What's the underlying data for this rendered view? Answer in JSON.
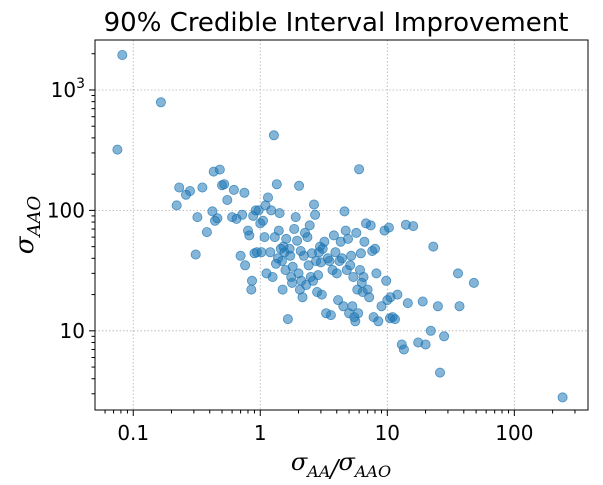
{
  "chart_data": {
    "type": "scatter",
    "title": "90% Credible Interval Improvement",
    "xlabel": "σ_AA/σ_AAO",
    "ylabel": "σ_AAO",
    "xscale": "log",
    "yscale": "log",
    "xlim": [
      0.05,
      380
    ],
    "ylim": [
      2.2,
      2600
    ],
    "grid": true,
    "x_ticks": [
      {
        "value": 0.1,
        "label": "0.1"
      },
      {
        "value": 1,
        "label": "1"
      },
      {
        "value": 10,
        "label": "10"
      },
      {
        "value": 100,
        "label": "100"
      }
    ],
    "y_ticks": [
      {
        "value": 10,
        "label": "10"
      },
      {
        "value": 100,
        "label": "100"
      },
      {
        "value": 1000,
        "label": "10^3"
      }
    ],
    "color": "#1f77b4",
    "points": [
      [
        0.075,
        320
      ],
      [
        0.082,
        1950
      ],
      [
        0.165,
        790
      ],
      [
        0.22,
        110
      ],
      [
        0.23,
        155
      ],
      [
        0.26,
        135
      ],
      [
        0.28,
        145
      ],
      [
        0.31,
        43
      ],
      [
        0.32,
        88
      ],
      [
        0.35,
        155
      ],
      [
        0.38,
        66
      ],
      [
        0.42,
        98
      ],
      [
        0.43,
        210
      ],
      [
        0.44,
        82
      ],
      [
        0.46,
        86
      ],
      [
        0.48,
        218
      ],
      [
        0.5,
        162
      ],
      [
        0.52,
        165
      ],
      [
        0.55,
        122
      ],
      [
        0.6,
        88
      ],
      [
        0.62,
        148
      ],
      [
        0.65,
        85
      ],
      [
        0.7,
        42
      ],
      [
        0.72,
        92
      ],
      [
        0.75,
        140
      ],
      [
        0.76,
        35
      ],
      [
        0.8,
        68
      ],
      [
        0.82,
        62
      ],
      [
        0.85,
        22
      ],
      [
        0.86,
        26
      ],
      [
        0.88,
        90
      ],
      [
        0.9,
        44
      ],
      [
        0.92,
        100
      ],
      [
        0.94,
        45
      ],
      [
        0.97,
        100
      ],
      [
        1.0,
        78
      ],
      [
        1.02,
        45
      ],
      [
        1.05,
        82
      ],
      [
        1.08,
        60
      ],
      [
        1.1,
        110
      ],
      [
        1.12,
        30
      ],
      [
        1.15,
        128
      ],
      [
        1.2,
        45
      ],
      [
        1.22,
        100
      ],
      [
        1.25,
        28
      ],
      [
        1.28,
        420
      ],
      [
        1.3,
        60
      ],
      [
        1.33,
        36
      ],
      [
        1.35,
        165
      ],
      [
        1.38,
        40
      ],
      [
        1.4,
        68
      ],
      [
        1.42,
        95
      ],
      [
        1.45,
        48
      ],
      [
        1.48,
        38
      ],
      [
        1.5,
        22
      ],
      [
        1.52,
        50
      ],
      [
        1.55,
        45
      ],
      [
        1.58,
        32
      ],
      [
        1.6,
        58
      ],
      [
        1.65,
        12.5
      ],
      [
        1.7,
        48
      ],
      [
        1.72,
        42
      ],
      [
        1.75,
        28
      ],
      [
        1.78,
        25
      ],
      [
        1.8,
        34
      ],
      [
        1.85,
        70
      ],
      [
        1.9,
        88
      ],
      [
        1.95,
        56
      ],
      [
        2.0,
        30
      ],
      [
        2.02,
        160
      ],
      [
        2.05,
        22
      ],
      [
        2.08,
        46
      ],
      [
        2.1,
        26
      ],
      [
        2.15,
        19
      ],
      [
        2.2,
        42
      ],
      [
        2.25,
        65
      ],
      [
        2.3,
        24
      ],
      [
        2.35,
        60
      ],
      [
        2.4,
        35
      ],
      [
        2.45,
        75
      ],
      [
        2.5,
        28
      ],
      [
        2.55,
        44
      ],
      [
        2.6,
        26
      ],
      [
        2.65,
        112
      ],
      [
        2.7,
        92
      ],
      [
        2.75,
        38
      ],
      [
        2.8,
        21
      ],
      [
        2.85,
        29
      ],
      [
        2.9,
        45
      ],
      [
        2.95,
        50
      ],
      [
        3.0,
        37
      ],
      [
        3.05,
        20
      ],
      [
        3.1,
        48
      ],
      [
        3.2,
        55
      ],
      [
        3.3,
        14
      ],
      [
        3.4,
        40
      ],
      [
        3.5,
        38
      ],
      [
        3.6,
        13.5
      ],
      [
        3.7,
        32
      ],
      [
        3.8,
        62
      ],
      [
        3.9,
        45
      ],
      [
        4.0,
        30
      ],
      [
        4.1,
        18
      ],
      [
        4.2,
        38
      ],
      [
        4.3,
        55
      ],
      [
        4.4,
        40
      ],
      [
        4.5,
        16
      ],
      [
        4.6,
        98
      ],
      [
        4.7,
        68
      ],
      [
        4.8,
        32
      ],
      [
        4.9,
        58
      ],
      [
        5.0,
        14
      ],
      [
        5.1,
        35
      ],
      [
        5.2,
        42
      ],
      [
        5.3,
        16
      ],
      [
        5.4,
        28
      ],
      [
        5.5,
        13
      ],
      [
        5.6,
        12
      ],
      [
        5.7,
        65
      ],
      [
        5.8,
        22
      ],
      [
        5.9,
        14
      ],
      [
        6.0,
        220
      ],
      [
        6.1,
        32
      ],
      [
        6.2,
        44
      ],
      [
        6.3,
        25
      ],
      [
        6.4,
        21
      ],
      [
        6.5,
        28
      ],
      [
        6.6,
        55
      ],
      [
        6.8,
        78
      ],
      [
        7.0,
        22
      ],
      [
        7.2,
        19
      ],
      [
        7.4,
        75
      ],
      [
        7.6,
        46
      ],
      [
        7.8,
        13
      ],
      [
        8.0,
        48
      ],
      [
        8.2,
        30
      ],
      [
        8.5,
        12
      ],
      [
        9.0,
        16
      ],
      [
        9.5,
        68
      ],
      [
        9.8,
        26
      ],
      [
        10.0,
        18
      ],
      [
        10.3,
        72
      ],
      [
        10.6,
        19
      ],
      [
        10.5,
        12.7
      ],
      [
        11.0,
        13
      ],
      [
        11.5,
        12.5
      ],
      [
        12.0,
        20
      ],
      [
        14.0,
        76
      ],
      [
        14.5,
        17
      ],
      [
        16.0,
        74
      ],
      [
        17.5,
        8
      ],
      [
        19.0,
        17.5
      ],
      [
        20.0,
        7.7
      ],
      [
        22.0,
        10
      ],
      [
        23.0,
        50
      ],
      [
        25.0,
        16
      ],
      [
        26.0,
        4.5
      ],
      [
        28.0,
        9
      ],
      [
        36.0,
        30
      ],
      [
        37.0,
        16
      ],
      [
        48.0,
        25
      ],
      [
        240,
        2.8
      ],
      [
        13.0,
        7.7
      ],
      [
        13.5,
        7
      ]
    ]
  }
}
